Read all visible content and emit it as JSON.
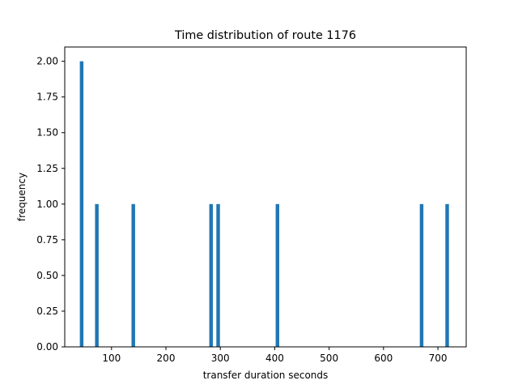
{
  "chart_data": {
    "type": "bar",
    "title": "Time distribution of route 1176",
    "xlabel": "transfer duration seconds",
    "ylabel": "frequency",
    "xlim": [
      14,
      752
    ],
    "ylim": [
      0,
      2.1
    ],
    "xticks": [
      "100",
      "200",
      "300",
      "400",
      "500",
      "600",
      "700"
    ],
    "xtick_values": [
      100,
      200,
      300,
      400,
      500,
      600,
      700
    ],
    "yticks": [
      "0.00",
      "0.25",
      "0.50",
      "0.75",
      "1.00",
      "1.25",
      "1.50",
      "1.75",
      "2.00"
    ],
    "ytick_values": [
      0,
      0.25,
      0.5,
      0.75,
      1.0,
      1.25,
      1.5,
      1.75,
      2.0
    ],
    "bin_width": 6.6,
    "bars": [
      {
        "x": 45,
        "value": 2
      },
      {
        "x": 73,
        "value": 1
      },
      {
        "x": 140,
        "value": 1
      },
      {
        "x": 283,
        "value": 1
      },
      {
        "x": 296,
        "value": 1
      },
      {
        "x": 405,
        "value": 1
      },
      {
        "x": 670,
        "value": 1
      },
      {
        "x": 717,
        "value": 1
      }
    ],
    "bar_color": "#1f77b4",
    "grid": false
  }
}
